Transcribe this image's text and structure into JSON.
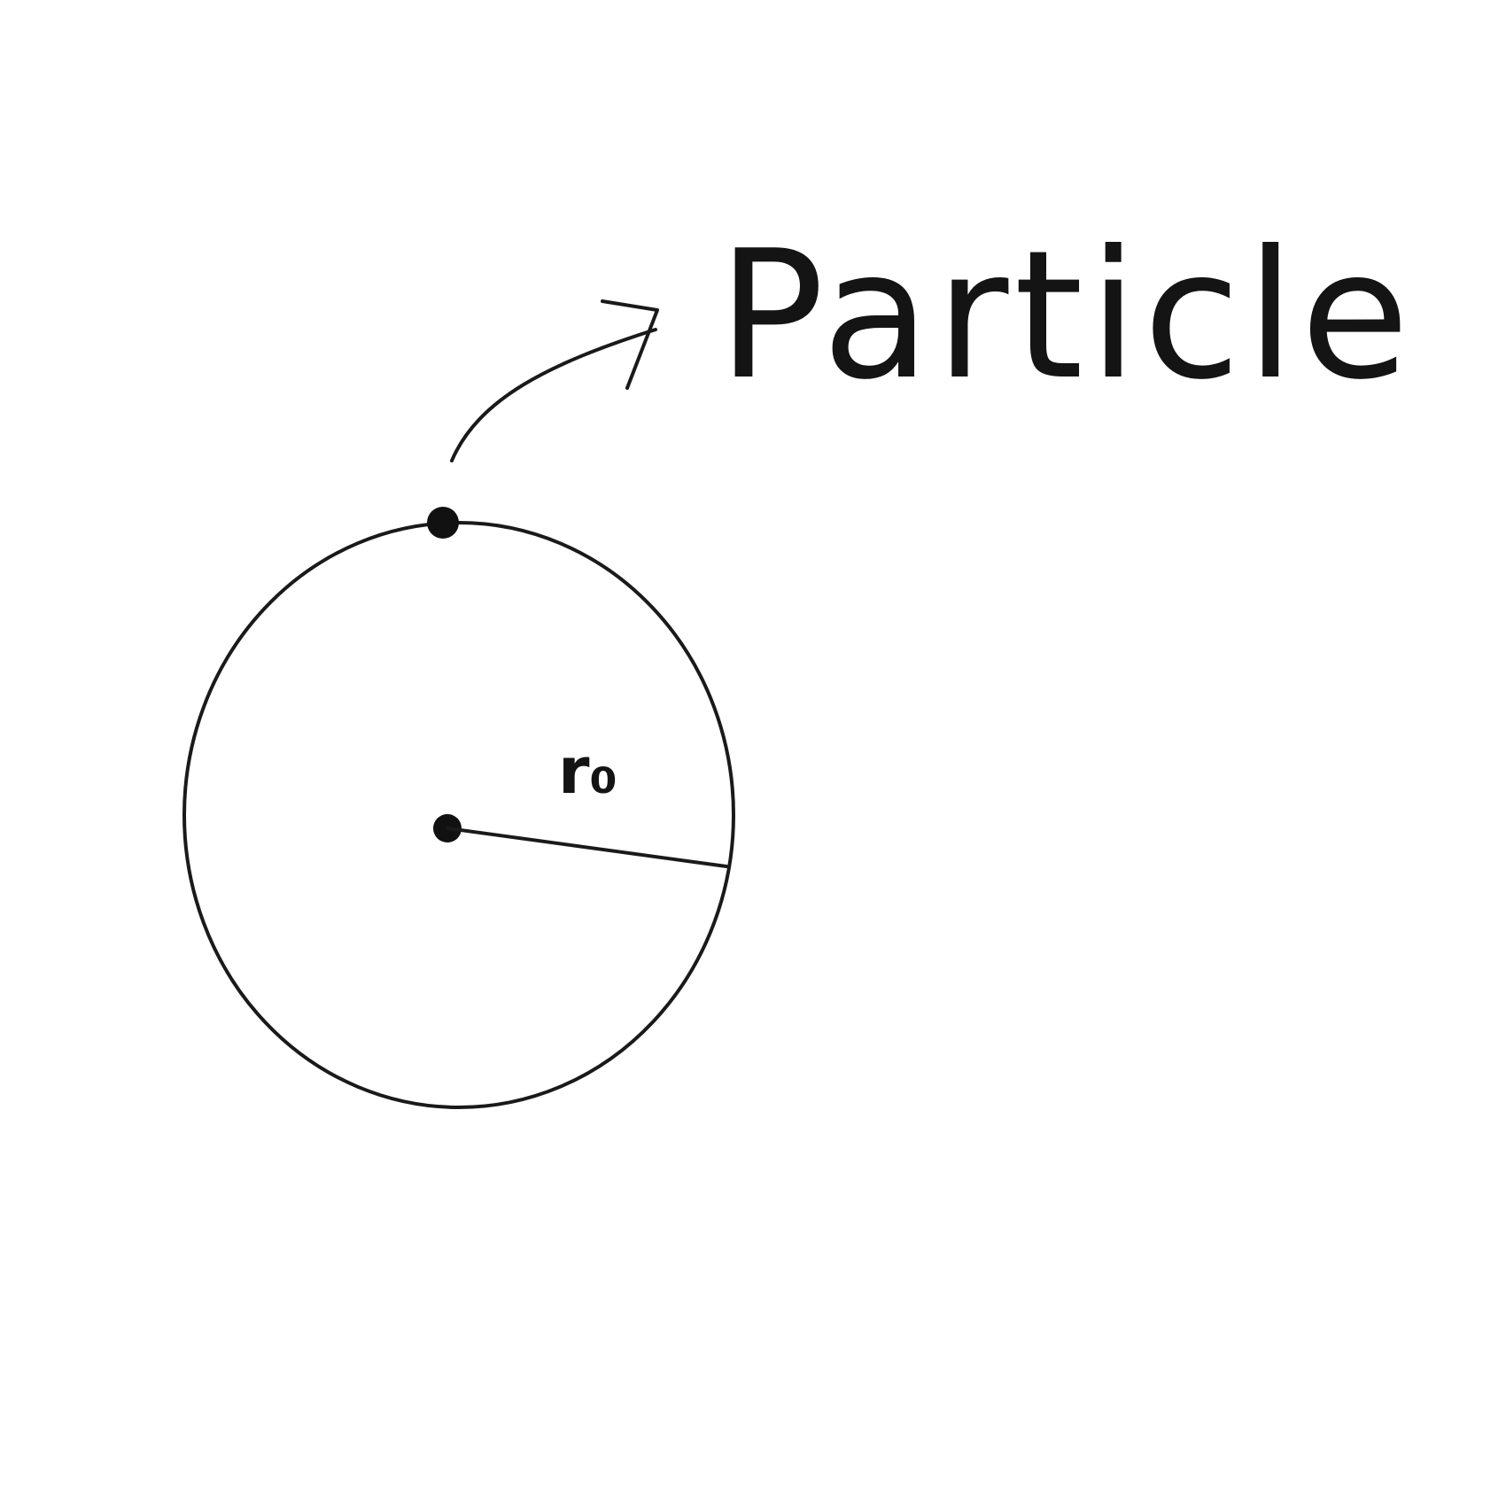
{
  "diagram": {
    "labels": {
      "particle": "Particle",
      "radius": "r₀"
    },
    "colors": {
      "background": "#ffffff",
      "ink": "#1a1a1a"
    }
  }
}
